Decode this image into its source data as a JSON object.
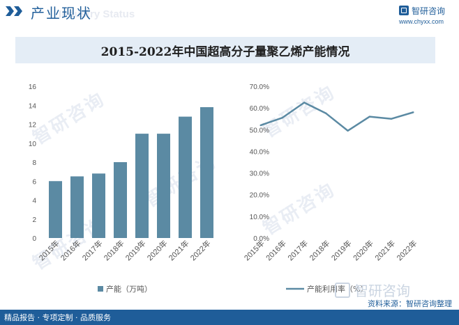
{
  "header": {
    "title": "产业现状",
    "ghost_text": "Industry Status",
    "brand": "智研咨询",
    "site": "www.chyxx.com",
    "accent": "#1f5d99"
  },
  "chart_title": "2015-2022年中国超高分子量聚乙烯产能情况",
  "watermark": "智研咨询",
  "watermark_brand": "智研咨询",
  "source": "资料来源：智研咨询整理",
  "footer": {
    "text": "精品报告 · 专项定制 · 品质服务"
  },
  "chart_data": [
    {
      "type": "bar",
      "title": "",
      "categories": [
        "2015年",
        "2016年",
        "2017年",
        "2018年",
        "2019年",
        "2020年",
        "2021年",
        "2022年"
      ],
      "series": [
        {
          "name": "产能（万吨）",
          "values": [
            6.0,
            6.5,
            6.8,
            8.0,
            11.0,
            11.0,
            12.8,
            13.8
          ],
          "color": "#5b8aa3"
        }
      ],
      "ylim": [
        0,
        16
      ],
      "yticks": [
        "0",
        "2",
        "4",
        "6",
        "8",
        "10",
        "12",
        "14",
        "16"
      ],
      "xlabel": "",
      "ylabel": "",
      "legend": "bottom-left"
    },
    {
      "type": "line",
      "title": "",
      "categories": [
        "2015年",
        "2016年",
        "2017年",
        "2018年",
        "2019年",
        "2020年",
        "2021年",
        "2022年"
      ],
      "series": [
        {
          "name": "产能利用率（%）",
          "values": [
            52.0,
            55.5,
            62.5,
            57.5,
            49.5,
            56.0,
            55.0,
            58.0
          ],
          "color": "#5b8aa3"
        }
      ],
      "ylim": [
        0,
        70
      ],
      "yticks": [
        "0.0%",
        "10.0%",
        "20.0%",
        "30.0%",
        "40.0%",
        "50.0%",
        "60.0%",
        "70.0%"
      ],
      "xlabel": "",
      "ylabel": "",
      "legend": "bottom-left"
    }
  ]
}
